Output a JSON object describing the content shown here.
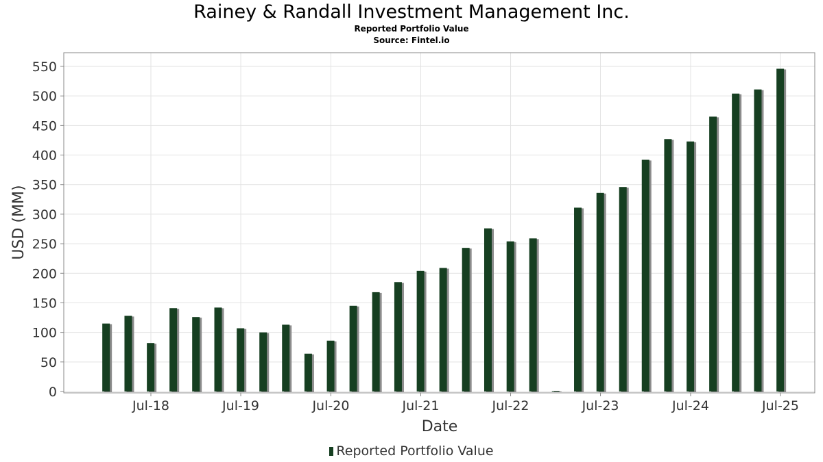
{
  "chart_data": {
    "type": "bar",
    "title": "Rainey & Randall Investment Management Inc.",
    "subtitle": "Reported Portfolio Value",
    "source": "Source: Fintel.io",
    "xlabel": "Date",
    "ylabel": "USD (MM)",
    "ylim": [
      0,
      570
    ],
    "yticks": [
      0,
      50,
      100,
      150,
      200,
      250,
      300,
      350,
      400,
      450,
      500,
      550
    ],
    "xticks": [
      "Jul-18",
      "Jul-19",
      "Jul-20",
      "Jul-21",
      "Jul-22",
      "Jul-23",
      "Jul-24",
      "Jul-25"
    ],
    "grid": true,
    "legend_position": "bottom",
    "bar_color": "#163f21",
    "shadow_color": "#8c8c8c",
    "series": [
      {
        "name": "Reported Portfolio Value",
        "points": [
          {
            "date": "2017-12-31",
            "value": 115
          },
          {
            "date": "2018-03-31",
            "value": 128
          },
          {
            "date": "2018-06-30",
            "value": 82
          },
          {
            "date": "2018-09-30",
            "value": 141
          },
          {
            "date": "2018-12-31",
            "value": 126
          },
          {
            "date": "2019-03-31",
            "value": 142
          },
          {
            "date": "2019-06-30",
            "value": 107
          },
          {
            "date": "2019-09-30",
            "value": 100
          },
          {
            "date": "2019-12-31",
            "value": 113
          },
          {
            "date": "2020-03-31",
            "value": 64
          },
          {
            "date": "2020-06-30",
            "value": 86
          },
          {
            "date": "2020-09-30",
            "value": 145
          },
          {
            "date": "2020-12-31",
            "value": 168
          },
          {
            "date": "2021-03-31",
            "value": 185
          },
          {
            "date": "2021-06-30",
            "value": 204
          },
          {
            "date": "2021-09-30",
            "value": 209
          },
          {
            "date": "2021-12-31",
            "value": 243
          },
          {
            "date": "2022-03-31",
            "value": 276
          },
          {
            "date": "2022-06-30",
            "value": 254
          },
          {
            "date": "2022-09-30",
            "value": 259
          },
          {
            "date": "2022-12-31",
            "value": 0
          },
          {
            "date": "2023-03-31",
            "value": 311
          },
          {
            "date": "2023-06-30",
            "value": 336
          },
          {
            "date": "2023-09-30",
            "value": 346
          },
          {
            "date": "2023-12-31",
            "value": 392
          },
          {
            "date": "2024-03-31",
            "value": 427
          },
          {
            "date": "2024-06-30",
            "value": 423
          },
          {
            "date": "2024-09-30",
            "value": 465
          },
          {
            "date": "2024-12-31",
            "value": 504
          },
          {
            "date": "2025-03-31",
            "value": 511
          },
          {
            "date": "2025-06-30",
            "value": 546
          }
        ]
      }
    ]
  }
}
